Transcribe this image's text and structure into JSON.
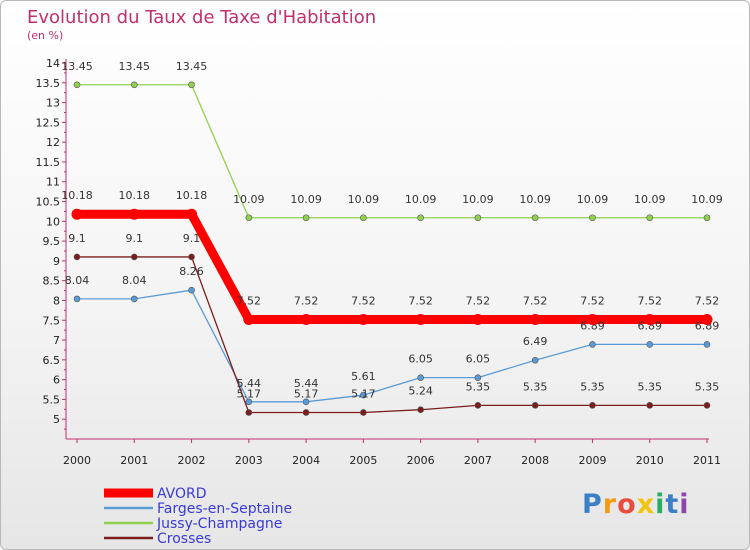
{
  "chart_data": {
    "type": "line",
    "title": "Evolution du Taux de Taxe d'Habitation",
    "subtitle": "(en %)",
    "xlabel": "",
    "ylabel": "",
    "categories": [
      "2000",
      "2001",
      "2002",
      "2003",
      "2004",
      "2005",
      "2006",
      "2007",
      "2008",
      "2009",
      "2010",
      "2011"
    ],
    "ylim": [
      4.5,
      14
    ],
    "yticks": [
      "5",
      "5.5",
      "6",
      "6.5",
      "7",
      "7.5",
      "8",
      "8.5",
      "9",
      "9.5",
      "10",
      "10.5",
      "11",
      "11.5",
      "12",
      "12.5",
      "13",
      "13.5",
      "14"
    ],
    "series": [
      {
        "name": "AVORD",
        "color": "#ff0000",
        "values": [
          10.18,
          10.18,
          10.18,
          7.52,
          7.52,
          7.52,
          7.52,
          7.52,
          7.52,
          7.52,
          7.52,
          7.52
        ],
        "labels": [
          "10.18",
          "10.18",
          "10.18",
          "7.52",
          "7.52",
          "7.52",
          "7.52",
          "7.52",
          "7.52",
          "7.52",
          "7.52",
          "7.52"
        ]
      },
      {
        "name": "Farges-en-Septaine",
        "color": "#5b9bd5",
        "values": [
          8.04,
          8.04,
          8.26,
          5.44,
          5.44,
          5.61,
          6.05,
          6.05,
          6.49,
          6.89,
          6.89,
          6.89
        ],
        "labels": [
          "8.04",
          "8.04",
          "8.26",
          "5.44",
          "5.44",
          "5.61",
          "6.05",
          "6.05",
          "6.49",
          "6.89",
          "6.89",
          "6.89"
        ]
      },
      {
        "name": "Jussy-Champagne",
        "color": "#8fd14f",
        "values": [
          13.45,
          13.45,
          13.45,
          10.09,
          10.09,
          10.09,
          10.09,
          10.09,
          10.09,
          10.09,
          10.09,
          10.09
        ],
        "labels": [
          "13.45",
          "13.45",
          "13.45",
          "10.09",
          "10.09",
          "10.09",
          "10.09",
          "10.09",
          "10.09",
          "10.09",
          "10.09",
          "10.09"
        ]
      },
      {
        "name": "Crosses",
        "color": "#7b1d1d",
        "values": [
          9.1,
          9.1,
          9.1,
          5.17,
          5.17,
          5.17,
          5.24,
          5.35,
          5.35,
          5.35,
          5.35,
          5.35
        ],
        "labels": [
          "9.1",
          "9.1",
          "9.1",
          "5.17",
          "5.17",
          "5.17",
          "5.24",
          "5.35",
          "5.35",
          "5.35",
          "5.35",
          "5.35"
        ]
      }
    ],
    "legend_position": "bottom-left"
  },
  "brand": {
    "letters": [
      "P",
      "r",
      "o",
      "x",
      "i",
      "t",
      "i"
    ],
    "colors": [
      "#3b7fc4",
      "#f39c12",
      "#e74c3c",
      "#f1c40f",
      "#27ae60",
      "#3b7fc4",
      "#8e44ad"
    ]
  }
}
